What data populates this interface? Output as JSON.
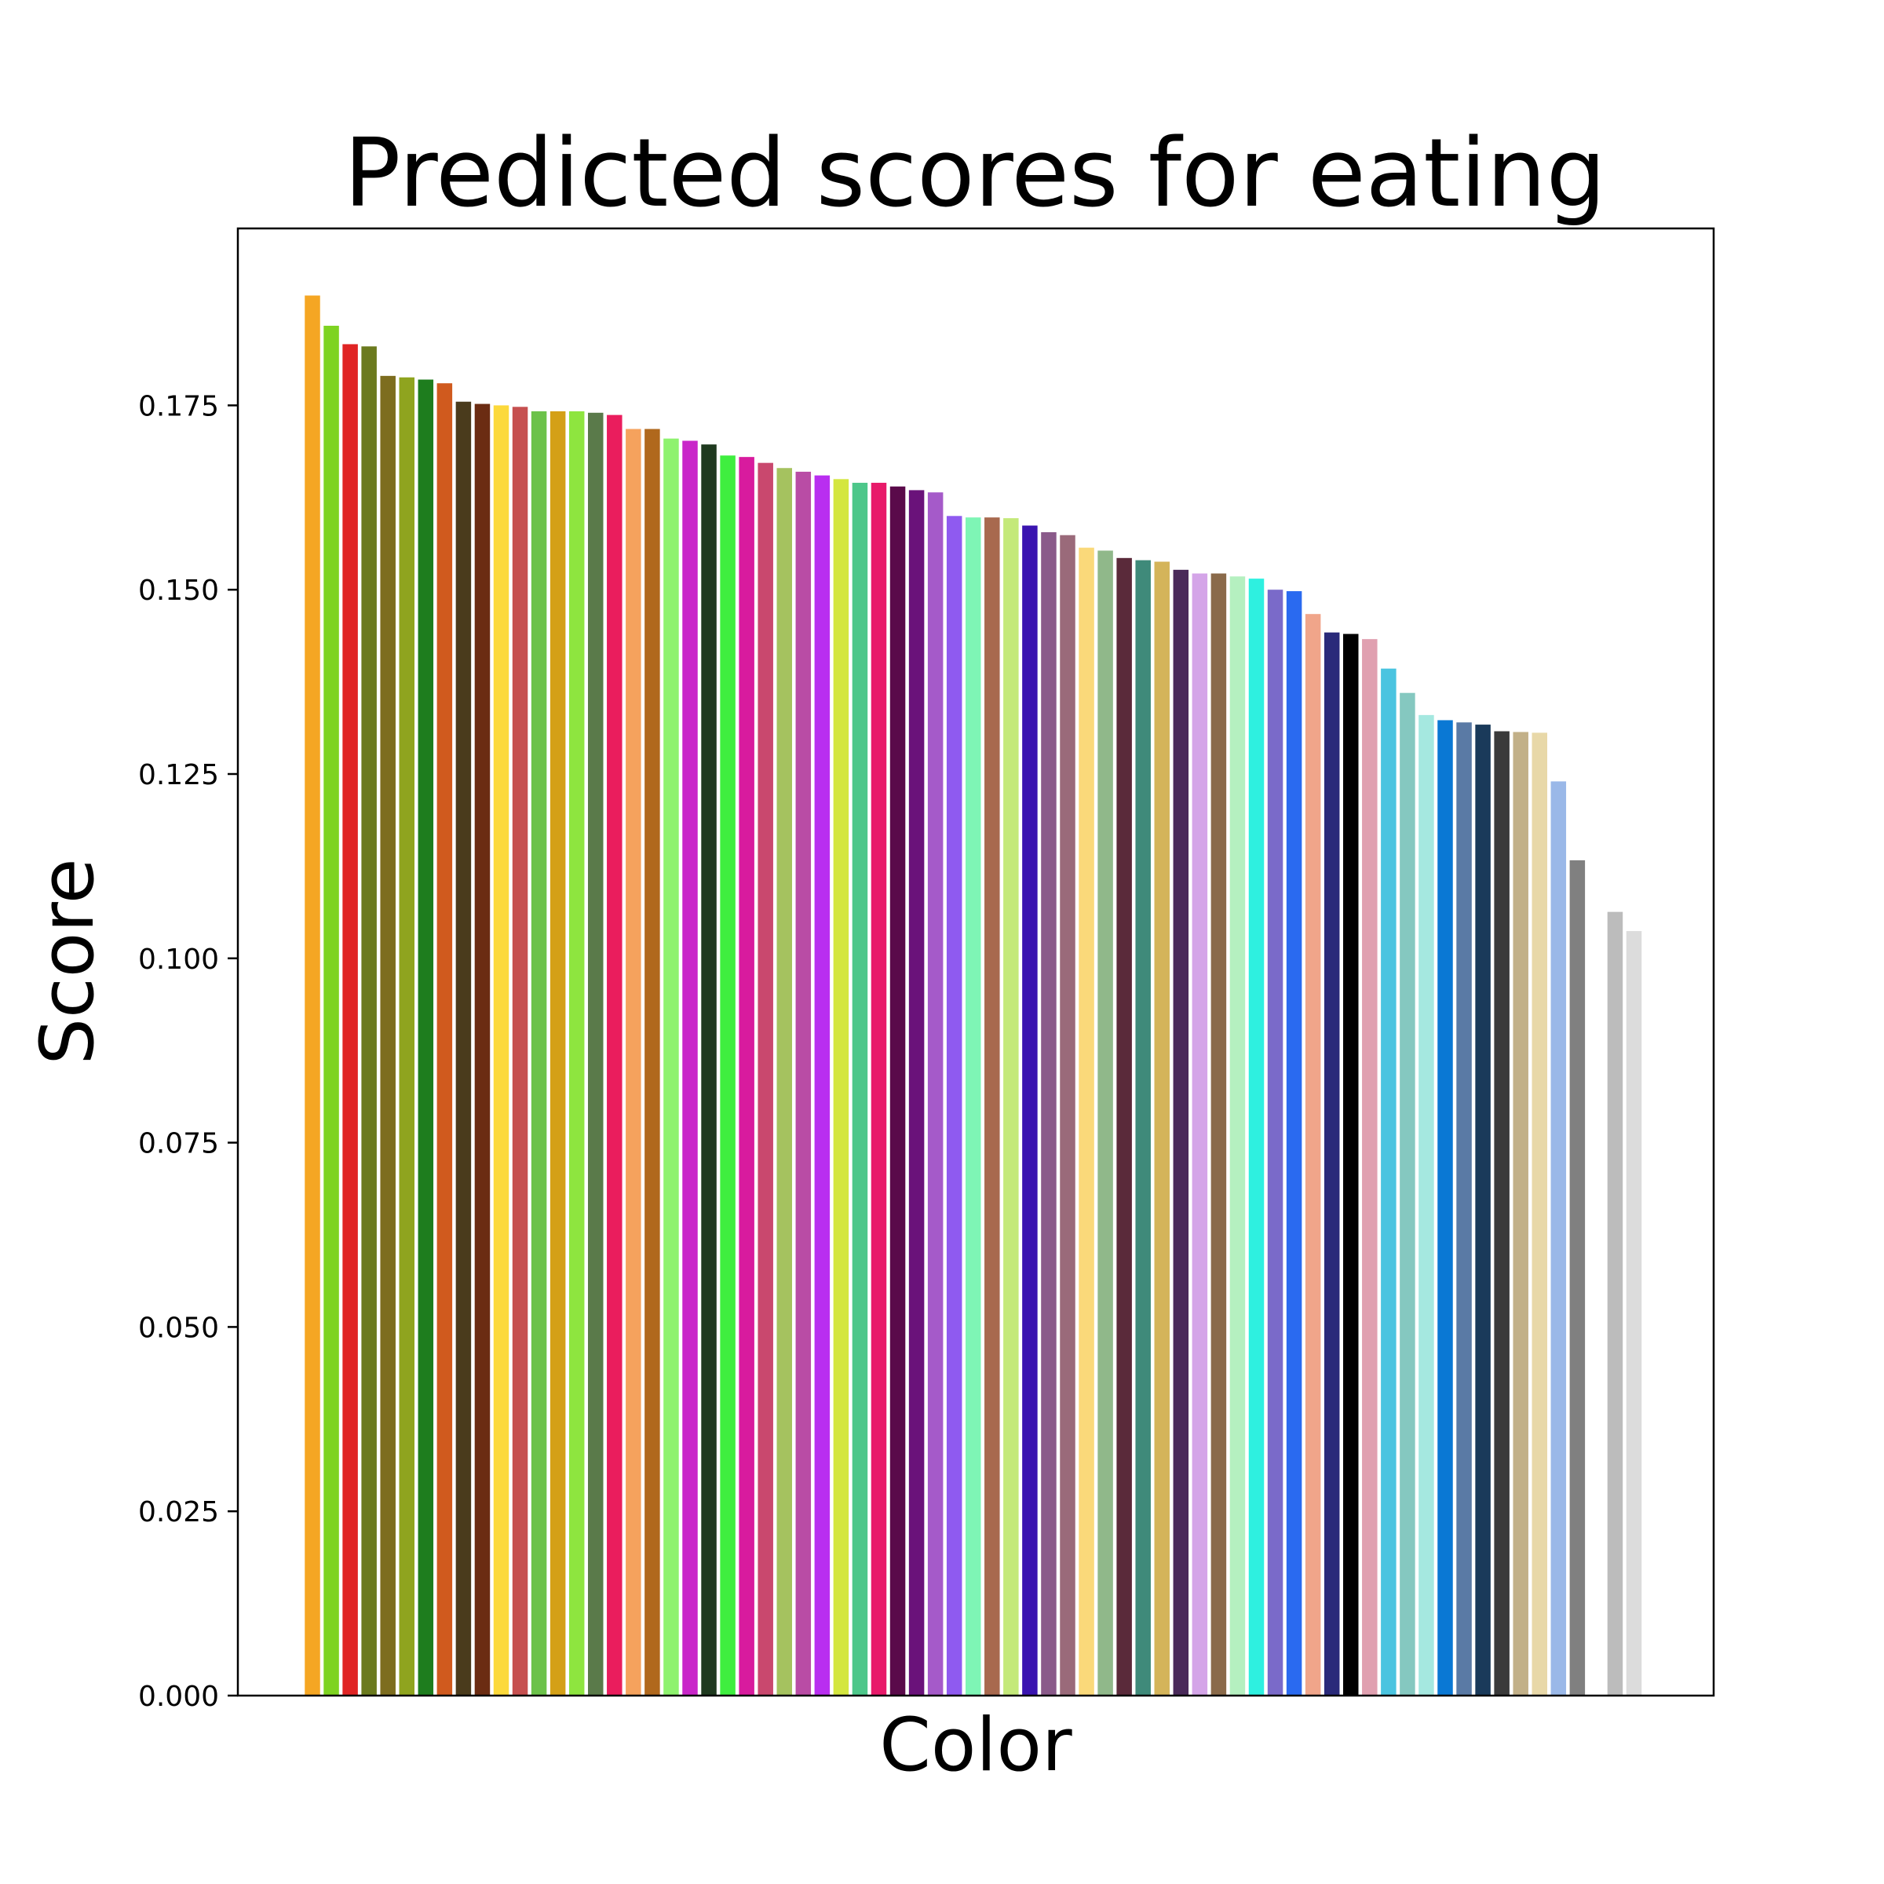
{
  "chart_data": {
    "type": "bar",
    "title": "Predicted scores for eating",
    "xlabel": "Color",
    "ylabel": "Score",
    "ylim": [
      0,
      0.199
    ],
    "yticks": [
      "0.000",
      "0.025",
      "0.050",
      "0.075",
      "0.100",
      "0.125",
      "0.150",
      "0.175"
    ],
    "grid": false,
    "values": [
      0.1899,
      0.1858,
      0.1833,
      0.183,
      0.179,
      0.1788,
      0.1785,
      0.178,
      0.1755,
      0.1752,
      0.175,
      0.1748,
      0.1742,
      0.1742,
      0.1742,
      0.174,
      0.1737,
      0.1718,
      0.1718,
      0.1705,
      0.1702,
      0.1697,
      0.1682,
      0.168,
      0.1672,
      0.1665,
      0.166,
      0.1655,
      0.165,
      0.1645,
      0.1645,
      0.164,
      0.1635,
      0.1632,
      0.16,
      0.1598,
      0.1598,
      0.1597,
      0.1587,
      0.1578,
      0.1574,
      0.1557,
      0.1553,
      0.1543,
      0.154,
      0.1538,
      0.1527,
      0.1522,
      0.1522,
      0.1518,
      0.1515,
      0.15,
      0.1498,
      0.1467,
      0.1442,
      0.144,
      0.1433,
      0.1393,
      0.136,
      0.133,
      0.1323,
      0.132,
      0.1317,
      0.1308,
      0.1307,
      0.1306,
      0.124,
      0.1133,
      0.0,
      0.1063,
      0.1037
    ],
    "colors": [
      "#f5a623",
      "#7ed321",
      "#e02424",
      "#6b7a1e",
      "#7d6d1f",
      "#8fa41f",
      "#1e7d1e",
      "#d05a1e",
      "#4a3b1c",
      "#6b2c12",
      "#fcd93b",
      "#c65050",
      "#6cc24a",
      "#d4a017",
      "#8ee53f",
      "#5a7a4a",
      "#ea1d5d",
      "#f5a25d",
      "#b0681d",
      "#8ef26e",
      "#c926c9",
      "#1f3a1f",
      "#3fee3f",
      "#d81b9e",
      "#c9486e",
      "#a5c25f",
      "#b94ca5",
      "#b92ef0",
      "#d4e63f",
      "#4dc78a",
      "#e81a6a",
      "#5a0a4a",
      "#6a127a",
      "#a55ac9",
      "#8f5af0",
      "#7ef5b5",
      "#a8694e",
      "#c4e97a",
      "#3a14b0",
      "#8a5a8a",
      "#9a6a7a",
      "#fad97a",
      "#90b88a",
      "#5a2a3a",
      "#3f8a7a",
      "#d4b45a",
      "#4a2a5a",
      "#d4a5e8",
      "#8a6a4a",
      "#b5f0c0",
      "#2ef0e0",
      "#7a6ac9",
      "#2a6af0",
      "#f0a58a",
      "#2a2a7a",
      "#000000",
      "#e0a0b0",
      "#4ac4e0",
      "#85c8c0",
      "#a5e8e0",
      "#0a78d4",
      "#5a7aa5",
      "#1a3a5a",
      "#3a3a3a",
      "#c2b088",
      "#e8d8a8",
      "#9ab8e8",
      "#808080",
      "#ffffff",
      "#bcbcbc",
      "#dcdcdc"
    ]
  }
}
